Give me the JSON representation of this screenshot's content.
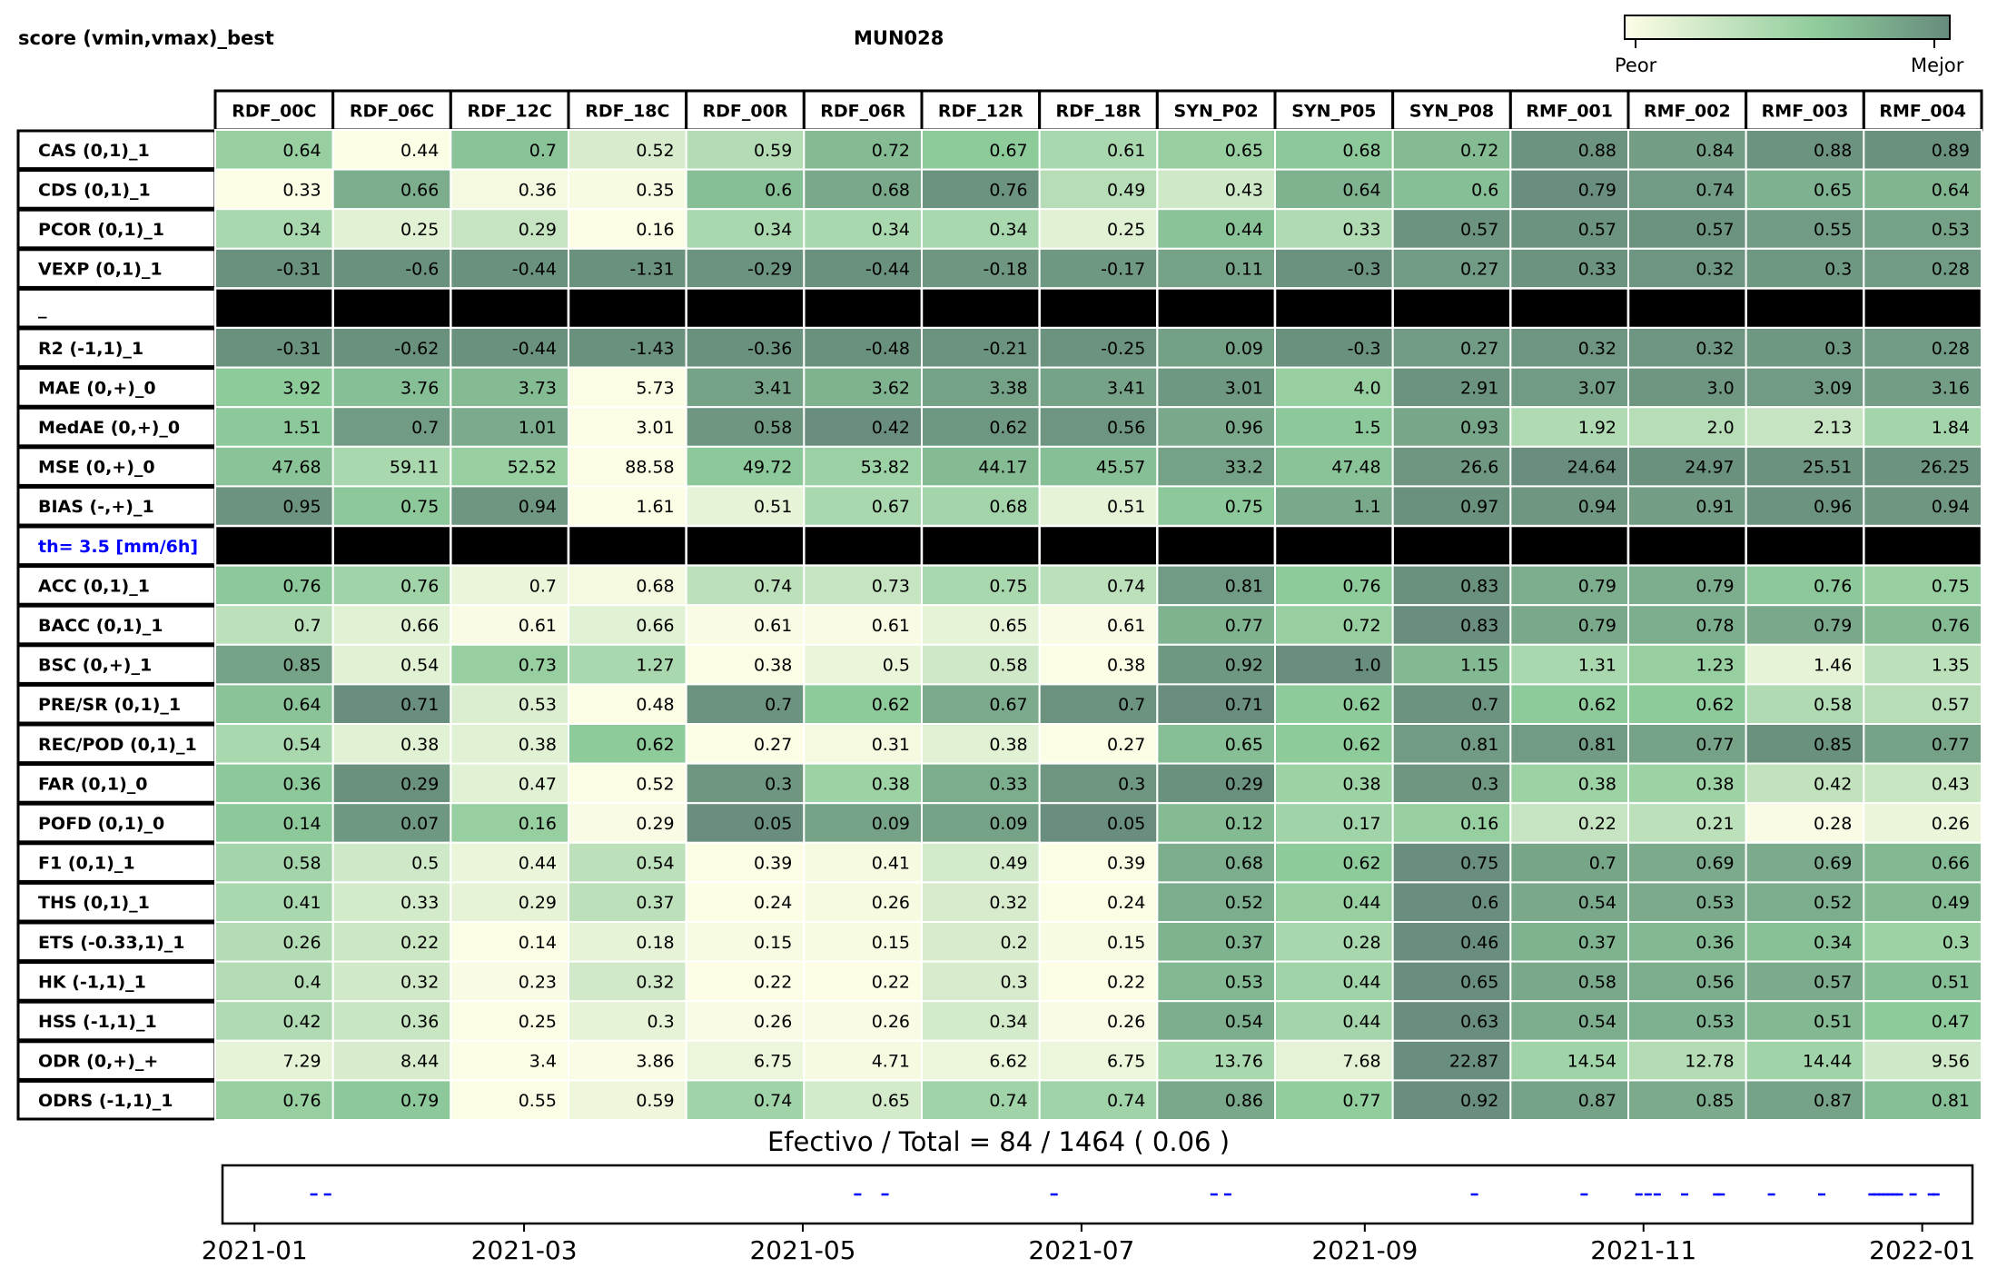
{
  "header": {
    "left_title": "score (vmin,vmax)_best",
    "center_title": "MUN028",
    "colorbar_low": "Peor",
    "colorbar_high": "Mejor"
  },
  "colors": {
    "low": "#fdfde6",
    "mid": "#8ecb9b",
    "high": "#678b7c",
    "separator": "#000000",
    "threshold_text": "#0000ff",
    "event_marks": "#0000ff"
  },
  "columns": [
    "RDF_00C",
    "RDF_06C",
    "RDF_12C",
    "RDF_18C",
    "RDF_00R",
    "RDF_06R",
    "RDF_12R",
    "RDF_18R",
    "SYN_P02",
    "SYN_P05",
    "SYN_P08",
    "RMF_001",
    "RMF_002",
    "RMF_003",
    "RMF_004"
  ],
  "rows": [
    {
      "label": "CAS (0,1)_1",
      "values": [
        "0.64",
        "0.44",
        "0.7",
        "0.52",
        "0.59",
        "0.72",
        "0.67",
        "0.61",
        "0.65",
        "0.68",
        "0.72",
        "0.88",
        "0.84",
        "0.88",
        "0.89"
      ],
      "shade": [
        0.55,
        0.0,
        0.65,
        0.2,
        0.4,
        0.7,
        0.6,
        0.45,
        0.55,
        0.62,
        0.7,
        0.95,
        0.88,
        0.95,
        0.97
      ]
    },
    {
      "label": "CDS (0,1)_1",
      "values": [
        "0.33",
        "0.66",
        "0.36",
        "0.35",
        "0.6",
        "0.68",
        "0.76",
        "0.49",
        "0.43",
        "0.64",
        "0.6",
        "0.79",
        "0.74",
        "0.65",
        "0.64"
      ],
      "shade": [
        0.0,
        0.78,
        0.05,
        0.03,
        0.68,
        0.82,
        0.95,
        0.38,
        0.25,
        0.75,
        0.68,
        0.98,
        0.9,
        0.76,
        0.74
      ]
    },
    {
      "label": "PCOR (0,1)_1",
      "values": [
        "0.34",
        "0.25",
        "0.29",
        "0.16",
        "0.34",
        "0.34",
        "0.34",
        "0.25",
        "0.44",
        "0.33",
        "0.57",
        "0.57",
        "0.57",
        "0.55",
        "0.53"
      ],
      "shade": [
        0.45,
        0.15,
        0.3,
        0.0,
        0.45,
        0.45,
        0.45,
        0.15,
        0.65,
        0.42,
        0.95,
        0.95,
        0.95,
        0.9,
        0.86
      ]
    },
    {
      "label": "VEXP (0,1)_1",
      "values": [
        "-0.31",
        "-0.6",
        "-0.44",
        "-1.31",
        "-0.29",
        "-0.44",
        "-0.18",
        "-0.17",
        "0.11",
        "-0.3",
        "0.27",
        "0.33",
        "0.32",
        "0.3",
        "0.28"
      ],
      "shade": [
        0.97,
        0.97,
        0.97,
        0.97,
        0.95,
        0.97,
        0.93,
        0.92,
        0.85,
        0.96,
        0.9,
        0.95,
        0.94,
        0.92,
        0.9
      ]
    },
    {
      "separator": true,
      "label": "_",
      "label_color": "#000000"
    },
    {
      "label": "R2 (-1,1)_1",
      "values": [
        "-0.31",
        "-0.62",
        "-0.44",
        "-1.43",
        "-0.36",
        "-0.48",
        "-0.21",
        "-0.25",
        "0.09",
        "-0.3",
        "0.27",
        "0.32",
        "0.32",
        "0.3",
        "0.28"
      ],
      "shade": [
        0.97,
        0.97,
        0.97,
        0.97,
        0.97,
        0.97,
        0.95,
        0.95,
        0.87,
        0.97,
        0.9,
        0.94,
        0.94,
        0.92,
        0.9
      ]
    },
    {
      "label": "MAE (0,+)_0",
      "values": [
        "3.92",
        "3.76",
        "3.73",
        "5.73",
        "3.41",
        "3.62",
        "3.38",
        "3.41",
        "3.01",
        "4.0",
        "2.91",
        "3.07",
        "3.0",
        "3.09",
        "3.16"
      ],
      "shade": [
        0.6,
        0.68,
        0.7,
        0.0,
        0.85,
        0.75,
        0.86,
        0.85,
        0.92,
        0.55,
        0.95,
        0.9,
        0.93,
        0.9,
        0.88
      ]
    },
    {
      "label": "MedAE (0,+)_0",
      "values": [
        "1.51",
        "0.7",
        "1.01",
        "3.01",
        "0.58",
        "0.42",
        "0.62",
        "0.56",
        "0.96",
        "1.5",
        "0.93",
        "1.92",
        "2.0",
        "2.13",
        "1.84"
      ],
      "shade": [
        0.62,
        0.9,
        0.8,
        0.0,
        0.93,
        0.98,
        0.92,
        0.94,
        0.82,
        0.62,
        0.83,
        0.42,
        0.38,
        0.3,
        0.48
      ]
    },
    {
      "label": "MSE (0,+)_0",
      "values": [
        "47.68",
        "59.11",
        "52.52",
        "88.58",
        "49.72",
        "53.82",
        "44.17",
        "45.57",
        "33.2",
        "47.48",
        "26.6",
        "24.64",
        "24.97",
        "25.51",
        "26.25"
      ],
      "shade": [
        0.65,
        0.45,
        0.55,
        0.0,
        0.62,
        0.53,
        0.7,
        0.68,
        0.86,
        0.65,
        0.93,
        0.98,
        0.97,
        0.96,
        0.95
      ]
    },
    {
      "label": "BIAS (-,+)_1",
      "values": [
        "0.95",
        "0.75",
        "0.94",
        "1.61",
        "0.51",
        "0.67",
        "0.68",
        "0.51",
        "0.75",
        "1.1",
        "0.97",
        "0.94",
        "0.91",
        "0.96",
        "0.94"
      ],
      "shade": [
        0.95,
        0.62,
        0.93,
        0.0,
        0.12,
        0.45,
        0.48,
        0.12,
        0.62,
        0.82,
        0.97,
        0.93,
        0.88,
        0.95,
        0.93
      ]
    },
    {
      "separator": true,
      "label": "th= 3.5 [mm/6h]",
      "label_color": "#0000ff"
    },
    {
      "label": "ACC (0,1)_1",
      "values": [
        "0.76",
        "0.76",
        "0.7",
        "0.68",
        "0.74",
        "0.73",
        "0.75",
        "0.74",
        "0.81",
        "0.76",
        "0.83",
        "0.79",
        "0.79",
        "0.76",
        "0.75"
      ],
      "shade": [
        0.62,
        0.5,
        0.1,
        0.05,
        0.35,
        0.3,
        0.45,
        0.35,
        0.9,
        0.6,
        0.97,
        0.78,
        0.78,
        0.62,
        0.55
      ]
    },
    {
      "label": "BACC (0,1)_1",
      "values": [
        "0.7",
        "0.66",
        "0.61",
        "0.66",
        "0.61",
        "0.61",
        "0.65",
        "0.61",
        "0.77",
        "0.72",
        "0.83",
        "0.79",
        "0.78",
        "0.79",
        "0.76"
      ],
      "shade": [
        0.35,
        0.15,
        0.02,
        0.15,
        0.02,
        0.02,
        0.12,
        0.02,
        0.75,
        0.55,
        0.98,
        0.82,
        0.78,
        0.82,
        0.7
      ]
    },
    {
      "label": "BSC (0,+)_1",
      "values": [
        "0.85",
        "0.54",
        "0.73",
        "1.27",
        "0.38",
        "0.5",
        "0.58",
        "0.38",
        "0.92",
        "1.0",
        "1.15",
        "1.31",
        "1.23",
        "1.46",
        "1.35"
      ],
      "shade": [
        0.85,
        0.15,
        0.55,
        0.45,
        0.0,
        0.1,
        0.25,
        0.0,
        0.92,
        0.98,
        0.72,
        0.45,
        0.55,
        0.12,
        0.35
      ]
    },
    {
      "label": "PRE/SR (0,1)_1",
      "values": [
        "0.64",
        "0.71",
        "0.53",
        "0.48",
        "0.7",
        "0.62",
        "0.67",
        "0.7",
        "0.71",
        "0.62",
        "0.7",
        "0.62",
        "0.62",
        "0.58",
        "0.57"
      ],
      "shade": [
        0.65,
        0.98,
        0.18,
        0.0,
        0.95,
        0.6,
        0.8,
        0.95,
        0.98,
        0.6,
        0.95,
        0.6,
        0.6,
        0.42,
        0.38
      ]
    },
    {
      "label": "REC/POD (0,1)_1",
      "values": [
        "0.54",
        "0.38",
        "0.38",
        "0.62",
        "0.27",
        "0.31",
        "0.38",
        "0.27",
        "0.65",
        "0.62",
        "0.81",
        "0.81",
        "0.77",
        "0.85",
        "0.77"
      ],
      "shade": [
        0.45,
        0.15,
        0.15,
        0.6,
        0.0,
        0.05,
        0.15,
        0.0,
        0.68,
        0.6,
        0.9,
        0.9,
        0.85,
        0.97,
        0.85
      ]
    },
    {
      "label": "FAR (0,1)_0",
      "values": [
        "0.36",
        "0.29",
        "0.47",
        "0.52",
        "0.3",
        "0.38",
        "0.33",
        "0.3",
        "0.29",
        "0.38",
        "0.3",
        "0.38",
        "0.38",
        "0.42",
        "0.43"
      ],
      "shade": [
        0.62,
        0.97,
        0.15,
        0.0,
        0.93,
        0.52,
        0.78,
        0.93,
        0.97,
        0.52,
        0.93,
        0.52,
        0.52,
        0.32,
        0.28
      ]
    },
    {
      "label": "POFD (0,1)_0",
      "values": [
        "0.14",
        "0.07",
        "0.16",
        "0.29",
        "0.05",
        "0.09",
        "0.09",
        "0.05",
        "0.12",
        "0.17",
        "0.16",
        "0.22",
        "0.21",
        "0.28",
        "0.26"
      ],
      "shade": [
        0.62,
        0.92,
        0.55,
        0.02,
        0.98,
        0.85,
        0.85,
        0.98,
        0.7,
        0.5,
        0.55,
        0.3,
        0.35,
        0.02,
        0.1
      ]
    },
    {
      "label": "F1 (0,1)_1",
      "values": [
        "0.58",
        "0.5",
        "0.44",
        "0.54",
        "0.39",
        "0.41",
        "0.49",
        "0.39",
        "0.68",
        "0.62",
        "0.75",
        "0.7",
        "0.69",
        "0.69",
        "0.66"
      ],
      "shade": [
        0.48,
        0.25,
        0.1,
        0.35,
        0.0,
        0.04,
        0.22,
        0.0,
        0.78,
        0.6,
        0.98,
        0.84,
        0.8,
        0.8,
        0.72
      ]
    },
    {
      "label": "THS (0,1)_1",
      "values": [
        "0.41",
        "0.33",
        "0.29",
        "0.37",
        "0.24",
        "0.26",
        "0.32",
        "0.24",
        "0.52",
        "0.44",
        "0.6",
        "0.54",
        "0.53",
        "0.52",
        "0.49"
      ],
      "shade": [
        0.45,
        0.22,
        0.12,
        0.35,
        0.0,
        0.04,
        0.2,
        0.0,
        0.78,
        0.55,
        0.98,
        0.82,
        0.8,
        0.78,
        0.7
      ]
    },
    {
      "label": "ETS (-0.33,1)_1",
      "values": [
        "0.26",
        "0.22",
        "0.14",
        "0.18",
        "0.15",
        "0.15",
        "0.2",
        "0.15",
        "0.37",
        "0.28",
        "0.46",
        "0.37",
        "0.36",
        "0.34",
        "0.3"
      ],
      "shade": [
        0.4,
        0.27,
        0.0,
        0.12,
        0.03,
        0.03,
        0.2,
        0.03,
        0.75,
        0.46,
        0.98,
        0.75,
        0.72,
        0.66,
        0.52
      ]
    },
    {
      "label": "HK (-1,1)_1",
      "values": [
        "0.4",
        "0.32",
        "0.23",
        "0.32",
        "0.22",
        "0.22",
        "0.3",
        "0.22",
        "0.53",
        "0.44",
        "0.65",
        "0.58",
        "0.56",
        "0.57",
        "0.51"
      ],
      "shade": [
        0.4,
        0.24,
        0.02,
        0.24,
        0.0,
        0.0,
        0.2,
        0.0,
        0.72,
        0.5,
        0.98,
        0.82,
        0.78,
        0.8,
        0.68
      ]
    },
    {
      "label": "HSS (-1,1)_1",
      "values": [
        "0.42",
        "0.36",
        "0.25",
        "0.3",
        "0.26",
        "0.26",
        "0.34",
        "0.26",
        "0.54",
        "0.44",
        "0.63",
        "0.54",
        "0.53",
        "0.51",
        "0.47"
      ],
      "shade": [
        0.42,
        0.28,
        0.0,
        0.12,
        0.02,
        0.02,
        0.22,
        0.02,
        0.78,
        0.48,
        0.98,
        0.78,
        0.76,
        0.72,
        0.6
      ]
    },
    {
      "label": "ODR (0,+)_+",
      "values": [
        "7.29",
        "8.44",
        "3.4",
        "3.86",
        "6.75",
        "4.71",
        "6.62",
        "6.75",
        "13.76",
        "7.68",
        "22.87",
        "14.54",
        "12.78",
        "14.44",
        "9.56"
      ],
      "shade": [
        0.12,
        0.2,
        0.0,
        0.01,
        0.09,
        0.04,
        0.09,
        0.09,
        0.45,
        0.13,
        0.98,
        0.5,
        0.4,
        0.5,
        0.25
      ]
    },
    {
      "label": "ODRS (-1,1)_1",
      "values": [
        "0.76",
        "0.79",
        "0.55",
        "0.59",
        "0.74",
        "0.65",
        "0.74",
        "0.74",
        "0.86",
        "0.77",
        "0.92",
        "0.87",
        "0.85",
        "0.87",
        "0.81"
      ],
      "shade": [
        0.55,
        0.62,
        0.0,
        0.08,
        0.5,
        0.22,
        0.5,
        0.5,
        0.82,
        0.58,
        0.98,
        0.85,
        0.8,
        0.85,
        0.68
      ]
    }
  ],
  "summary": {
    "text": "Efectivo / Total  =  84 / 1464 ( 0.06 )"
  },
  "chart_data": [
    {
      "type": "heatmap",
      "title": "MUN028",
      "subtitle": "score (vmin,vmax)_best",
      "colorbar": {
        "low": "Peor",
        "high": "Mejor"
      },
      "columns": [
        "RDF_00C",
        "RDF_06C",
        "RDF_12C",
        "RDF_18C",
        "RDF_00R",
        "RDF_06R",
        "RDF_12R",
        "RDF_18R",
        "SYN_P02",
        "SYN_P05",
        "SYN_P08",
        "RMF_001",
        "RMF_002",
        "RMF_003",
        "RMF_004"
      ],
      "note_rows": "see rows[] for per-metric values"
    },
    {
      "type": "scatter",
      "title": "Efectivo / Total  =  84 / 1464 ( 0.06 )",
      "x_ticks": [
        "2021-01",
        "2021-03",
        "2021-05",
        "2021-07",
        "2021-09",
        "2021-11",
        "2022-01"
      ],
      "xlim": [
        "2020-12-25",
        "2022-01-12"
      ],
      "y": 0,
      "events": [
        "2021-01-14",
        "2021-01-17",
        "2021-05-13",
        "2021-05-19",
        "2021-06-25",
        "2021-07-30",
        "2021-08-02",
        "2021-09-25",
        "2021-10-19",
        "2021-10-31",
        "2021-11-02",
        "2021-11-04",
        "2021-11-10",
        "2021-11-17",
        "2021-11-18",
        "2021-11-29",
        "2021-12-10",
        "2021-12-21",
        "2021-12-22",
        "2021-12-23",
        "2021-12-24",
        "2021-12-25",
        "2021-12-26",
        "2021-12-27",
        "2021-12-30",
        "2022-01-03",
        "2022-01-04"
      ]
    }
  ]
}
